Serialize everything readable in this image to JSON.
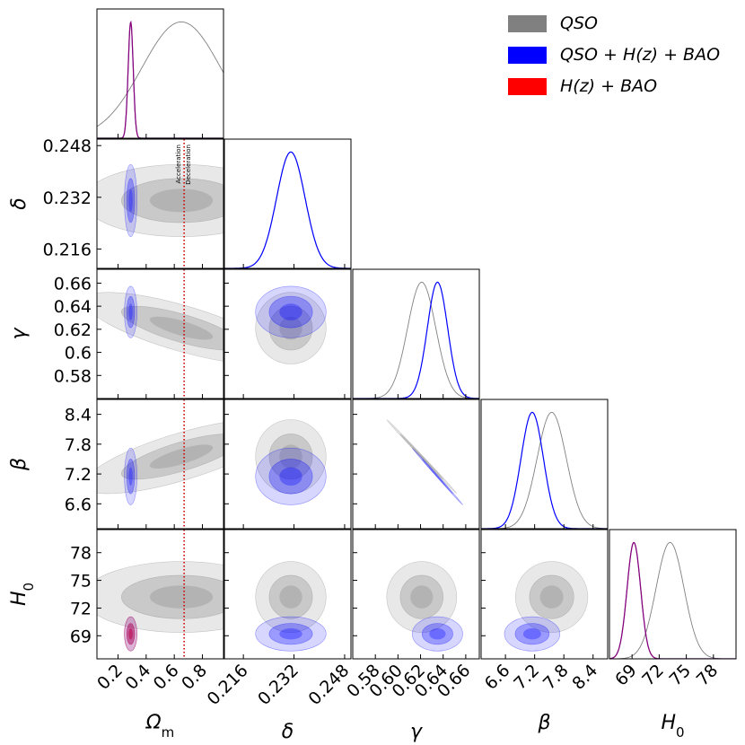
{
  "chart_data": {
    "type": "corner",
    "title": "",
    "parameters": [
      {
        "key": "om",
        "label": "Ω",
        "sub": "m",
        "range": [
          0.05,
          0.95
        ],
        "ticks": [
          0.2,
          0.4,
          0.6,
          0.8
        ],
        "tick_labels": [
          "0.2",
          "0.4",
          "0.6",
          "0.8"
        ]
      },
      {
        "key": "delta",
        "label": "δ",
        "sub": "",
        "range": [
          0.21,
          0.25
        ],
        "ticks": [
          0.216,
          0.232,
          0.248
        ],
        "tick_labels": [
          "0.216",
          "0.232",
          "0.248"
        ]
      },
      {
        "key": "gamma",
        "label": "γ",
        "sub": "",
        "range": [
          0.56,
          0.672
        ],
        "ticks": [
          0.58,
          0.6,
          0.62,
          0.64,
          0.66
        ],
        "tick_labels": [
          "0.58",
          "0.60",
          "0.62",
          "0.64",
          "0.66"
        ],
        "y_tick_labels": [
          "0.58",
          "0.6",
          "0.62",
          "0.64",
          "0.66"
        ]
      },
      {
        "key": "beta",
        "label": "β",
        "sub": "",
        "range": [
          6.1,
          8.7
        ],
        "ticks": [
          6.6,
          7.2,
          7.8,
          8.4
        ],
        "tick_labels": [
          "6.6",
          "7.2",
          "7.8",
          "8.4"
        ]
      },
      {
        "key": "h0",
        "label": "H",
        "sub": "0",
        "range": [
          66.5,
          80.5
        ],
        "ticks": [
          69,
          72,
          75,
          78
        ],
        "tick_labels": [
          "69",
          "72",
          "75",
          "78"
        ]
      }
    ],
    "series": [
      {
        "name": "QSO",
        "color": "#808080",
        "legend": "QSO",
        "mean": {
          "om": 0.65,
          "delta": 0.231,
          "gamma": 0.621,
          "beta": 7.55,
          "h0": 73.2
        },
        "sigma": {
          "om": 0.28,
          "delta": 0.0045,
          "gamma": 0.0125,
          "beta": 0.3,
          "h0": 1.55
        },
        "corr": {
          "om-gamma": -0.75,
          "om-beta": 0.75,
          "gamma-beta": -0.999
        }
      },
      {
        "name": "QSO+H(z)+BAO",
        "color": "#0000ff",
        "legend": "QSO + H(z) + BAO",
        "mean": {
          "om": 0.29,
          "delta": 0.231,
          "gamma": 0.635,
          "beta": 7.15,
          "h0": 69.2
        },
        "sigma": {
          "om": 0.018,
          "delta": 0.0045,
          "gamma": 0.009,
          "beta": 0.23,
          "h0": 0.75
        },
        "corr": {
          "gamma-beta": -0.999
        }
      },
      {
        "name": "H(z)+BAO",
        "color": "#ff0000",
        "legend": "H(z) + BAO",
        "mean": {
          "om": 0.29,
          "h0": 69.2
        },
        "sigma": {
          "om": 0.018,
          "h0": 0.75
        },
        "corr": {}
      }
    ],
    "annotations": [
      {
        "text": "Acceleration",
        "param": "om",
        "value": 0.67
      },
      {
        "text": "Deceleration",
        "param": "om",
        "value": 0.67
      }
    ],
    "reference_line": {
      "param": "om",
      "value": 0.67,
      "color": "#cc0000",
      "style": "dotted"
    }
  }
}
